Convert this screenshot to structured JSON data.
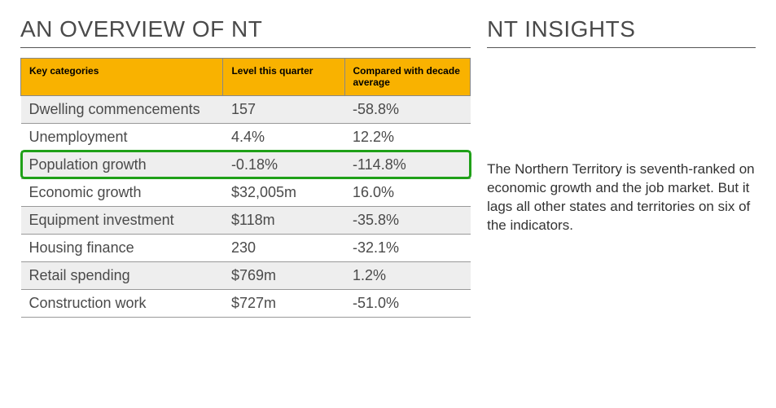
{
  "overview": {
    "title": "AN OVERVIEW OF NT",
    "table": {
      "header_bg": "#f9b200",
      "header_text_color": "#000000",
      "border_color": "#888888",
      "row_alt_bg": "#eeeeee",
      "row_bg": "#ffffff",
      "highlight_border": "#1fa018",
      "columns": {
        "cat": "Key categories",
        "level": "Level this quarter",
        "comp": "Compared with decade average"
      },
      "rows": [
        {
          "cat": "Dwelling commencements",
          "level": "157",
          "comp": "-58.8%",
          "highlight": false
        },
        {
          "cat": "Unemployment",
          "level": "4.4%",
          "comp": "12.2%",
          "highlight": false
        },
        {
          "cat": "Population growth",
          "level": "-0.18%",
          "comp": "-114.8%",
          "highlight": true
        },
        {
          "cat": "Economic growth",
          "level": "$32,005m",
          "comp": "16.0%",
          "highlight": false
        },
        {
          "cat": "Equipment investment",
          "level": "$118m",
          "comp": "-35.8%",
          "highlight": false
        },
        {
          "cat": "Housing finance",
          "level": "230",
          "comp": "-32.1%",
          "highlight": false
        },
        {
          "cat": "Retail spending",
          "level": "$769m",
          "comp": "1.2%",
          "highlight": false
        },
        {
          "cat": "Construction work",
          "level": "$727m",
          "comp": "-51.0%",
          "highlight": false
        }
      ]
    }
  },
  "insights": {
    "title": "NT INSIGHTS",
    "body": "The Northern Territory is seventh-ranked on economic growth and the job market. But it lags all other states and territories on six of the indicators."
  }
}
